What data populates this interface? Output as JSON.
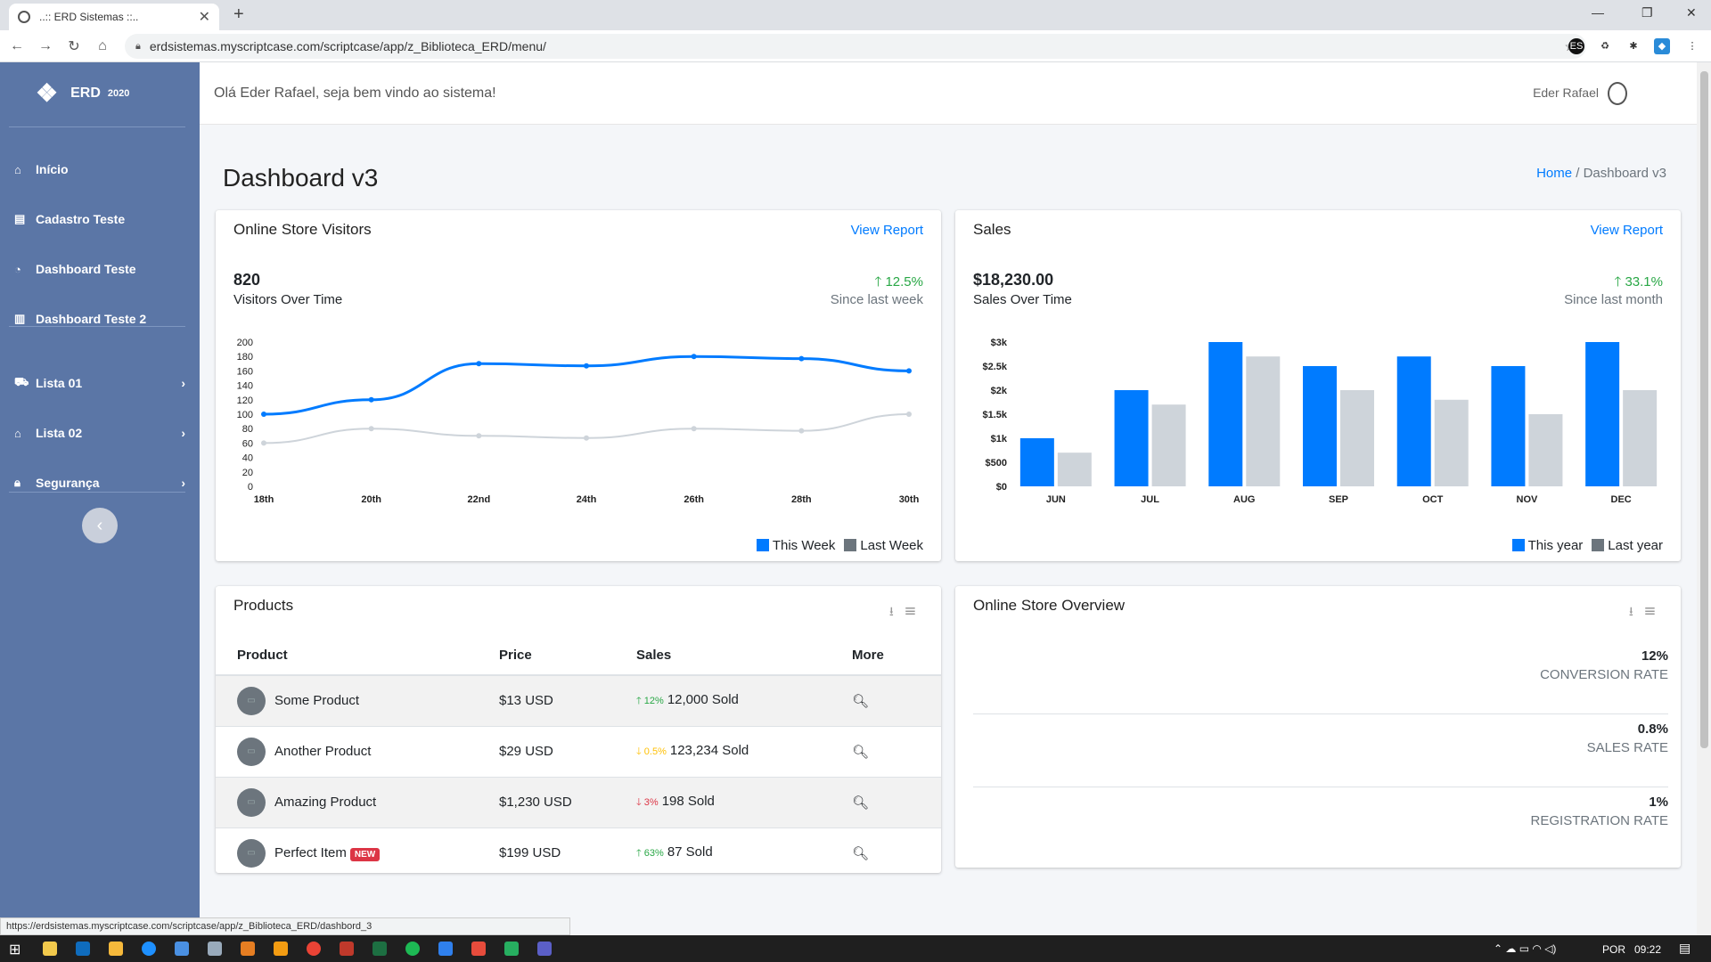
{
  "browser": {
    "tab_title": "..:: ERD Sistemas ::..",
    "url": "erdsistemas.myscriptcase.com/scriptcase/app/z_Biblioteca_ERD/menu/",
    "status_url": "https://erdsistemas.myscriptcase.com/scriptcase/app/z_Biblioteca_ERD/dashbord_3"
  },
  "sidebar": {
    "brand": "ERD",
    "year": "2020",
    "items": [
      {
        "label": "Início",
        "icon": "home-icon"
      },
      {
        "label": "Cadastro Teste",
        "icon": "form-icon"
      },
      {
        "label": "Dashboard Teste",
        "icon": "pie-icon"
      },
      {
        "label": "Dashboard Teste 2",
        "icon": "chart-icon"
      },
      {
        "label": "Lista 01",
        "icon": "truck-icon"
      },
      {
        "label": "Lista 02",
        "icon": "tags-icon"
      },
      {
        "label": "Segurança",
        "icon": "lock-icon"
      }
    ]
  },
  "topbar": {
    "welcome": "Olá Eder Rafael, seja bem vindo ao sistema!",
    "user": "Eder Rafael"
  },
  "page": {
    "title": "Dashboard v3",
    "breadcrumb_home": "Home",
    "breadcrumb_current": "Dashboard v3"
  },
  "visitors": {
    "title": "Online Store Visitors",
    "view_report": "View Report",
    "total": "820",
    "subtitle": "Visitors Over Time",
    "change": "12.5%",
    "since": "Since last week",
    "legend": [
      "This Week",
      "Last Week"
    ]
  },
  "sales": {
    "title": "Sales",
    "view_report": "View Report",
    "total": "$18,230.00",
    "subtitle": "Sales Over Time",
    "change": "33.1%",
    "since": "Since last month",
    "legend": [
      "This year",
      "Last year"
    ]
  },
  "products": {
    "title": "Products",
    "headers": [
      "Product",
      "Price",
      "Sales",
      "More"
    ],
    "rows": [
      {
        "name": "Some Product",
        "price": "$13 USD",
        "change": "12%",
        "trend": "up",
        "sold": "12,000 Sold",
        "new": ""
      },
      {
        "name": "Another Product",
        "price": "$29 USD",
        "change": "0.5%",
        "trend": "down-warn",
        "sold": "123,234 Sold",
        "new": ""
      },
      {
        "name": "Amazing Product",
        "price": "$1,230 USD",
        "change": "3%",
        "trend": "down",
        "sold": "198 Sold",
        "new": ""
      },
      {
        "name": "Perfect Item",
        "price": "$199 USD",
        "change": "63%",
        "trend": "up",
        "sold": "87 Sold",
        "new": "NEW"
      }
    ]
  },
  "overview": {
    "title": "Online Store Overview",
    "rows": [
      {
        "value": "12%",
        "label": "CONVERSION RATE"
      },
      {
        "value": "0.8%",
        "label": "SALES RATE"
      },
      {
        "value": "1%",
        "label": "REGISTRATION RATE"
      }
    ]
  },
  "taskbar": {
    "lang": "POR",
    "time": "09:22"
  },
  "colors": {
    "primary": "#007bff",
    "gray": "#ced4da",
    "sidebar": "#5b76a6",
    "success": "#28a745",
    "danger": "#dc3545",
    "warning": "#ffc107"
  },
  "chart_data": [
    {
      "type": "line",
      "title": "",
      "x": [
        "18th",
        "20th",
        "22nd",
        "24th",
        "26th",
        "28th",
        "30th"
      ],
      "ylim": [
        0,
        200
      ],
      "yticks": [
        0,
        20,
        40,
        60,
        80,
        100,
        120,
        140,
        160,
        180,
        200
      ],
      "series": [
        {
          "name": "This Week",
          "values": [
            100,
            120,
            170,
            167,
            180,
            177,
            160
          ]
        },
        {
          "name": "Last Week",
          "values": [
            60,
            80,
            70,
            67,
            80,
            77,
            100
          ]
        }
      ]
    },
    {
      "type": "bar",
      "title": "",
      "categories": [
        "JUN",
        "JUL",
        "AUG",
        "SEP",
        "OCT",
        "NOV",
        "DEC"
      ],
      "ylim": [
        0,
        3000
      ],
      "yticks": [
        "$0",
        "$500",
        "$1k",
        "$1.5k",
        "$2k",
        "$2.5k",
        "$3k"
      ],
      "series": [
        {
          "name": "This year",
          "values": [
            1000,
            2000,
            3000,
            2500,
            2700,
            2500,
            3000
          ]
        },
        {
          "name": "Last year",
          "values": [
            700,
            1700,
            2700,
            2000,
            1800,
            1500,
            2000
          ]
        }
      ]
    }
  ]
}
